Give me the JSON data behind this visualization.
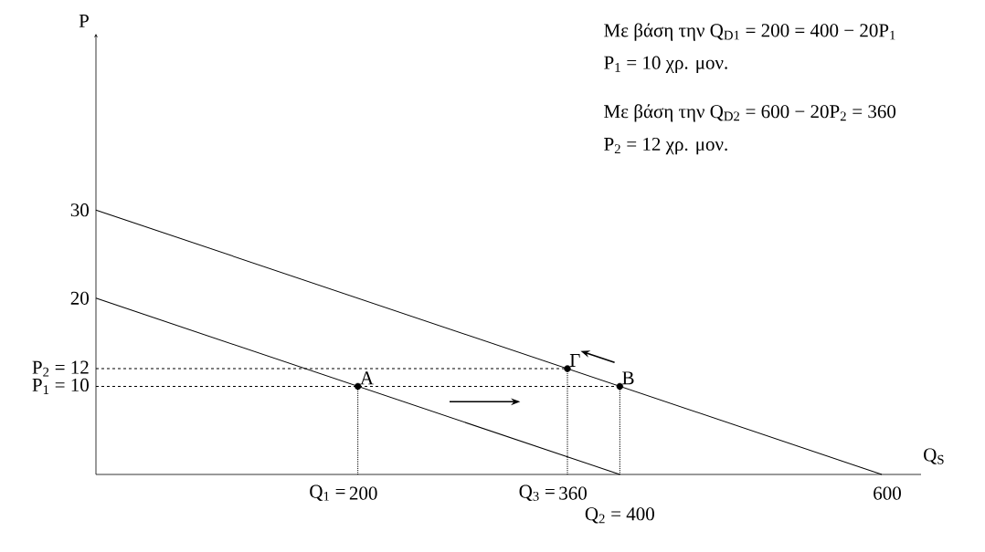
{
  "chart_data": {
    "type": "line",
    "xlabel": "Q$_{S}$",
    "ylabel": "P",
    "xlim": [
      0,
      630
    ],
    "ylim": [
      0,
      50
    ],
    "xticks": [
      200,
      360,
      600
    ],
    "yticks": [
      {
        "value": 10,
        "label": "P$_{1}$ = 10"
      },
      {
        "value": 12,
        "label": "P$_{2}$ = 12"
      },
      20,
      30
    ],
    "grid": false,
    "series": [
      {
        "color": "#000000",
        "line_style": "solid",
        "x": [
          0,
          400
        ],
        "values": [
          20,
          0
        ]
      },
      {
        "color": "#000000",
        "line_style": "solid",
        "x": [
          0,
          600
        ],
        "values": [
          30,
          0
        ]
      },
      {
        "color": "#000000",
        "line_style": "dashed",
        "x": [
          0,
          360
        ],
        "values": [
          12,
          12
        ]
      },
      {
        "color": "#000000",
        "line_style": "dashed",
        "x": [
          0,
          400
        ],
        "values": [
          10,
          10
        ]
      },
      {
        "color": "#000000",
        "line_style": "dotted",
        "x": [
          200,
          200
        ],
        "values": [
          0,
          10
        ]
      },
      {
        "color": "#000000",
        "line_style": "dotted",
        "x": [
          360,
          360
        ],
        "values": [
          0,
          12
        ]
      },
      {
        "color": "#000000",
        "line_style": "dotted",
        "x": [
          400,
          400
        ],
        "values": [
          0,
          10
        ]
      },
      {
        "type": "scatter",
        "color": "#000000",
        "marker": "circle",
        "x": [
          200,
          400,
          360
        ],
        "values": [
          10,
          10,
          12
        ]
      }
    ],
    "annotations": [
      "Με βάση την Q$_{D1}$ = 200 = 400 − 20P$_{1}$",
      "P$_{1}$ = 10 χρ. μον.",
      "Με βάση την Q$_{D2}$ = 600 − 20P$_{2}$ = 360",
      "P$_{2}$ = 12 χρ. μον.",
      {
        "text": "A",
        "x": 200,
        "y": 10
      },
      {
        "text": "B",
        "x": 400,
        "y": 10
      },
      {
        "text": "Γ",
        "x": 360,
        "y": 12
      },
      {
        "text": "Q$_{1}$ =",
        "x": 200,
        "y": 0
      },
      {
        "text": "Q$_{3}$ =",
        "x": 360,
        "y": 0
      },
      {
        "text": "Q$_{2}$ = 400",
        "x": 400,
        "y": 0
      }
    ]
  }
}
